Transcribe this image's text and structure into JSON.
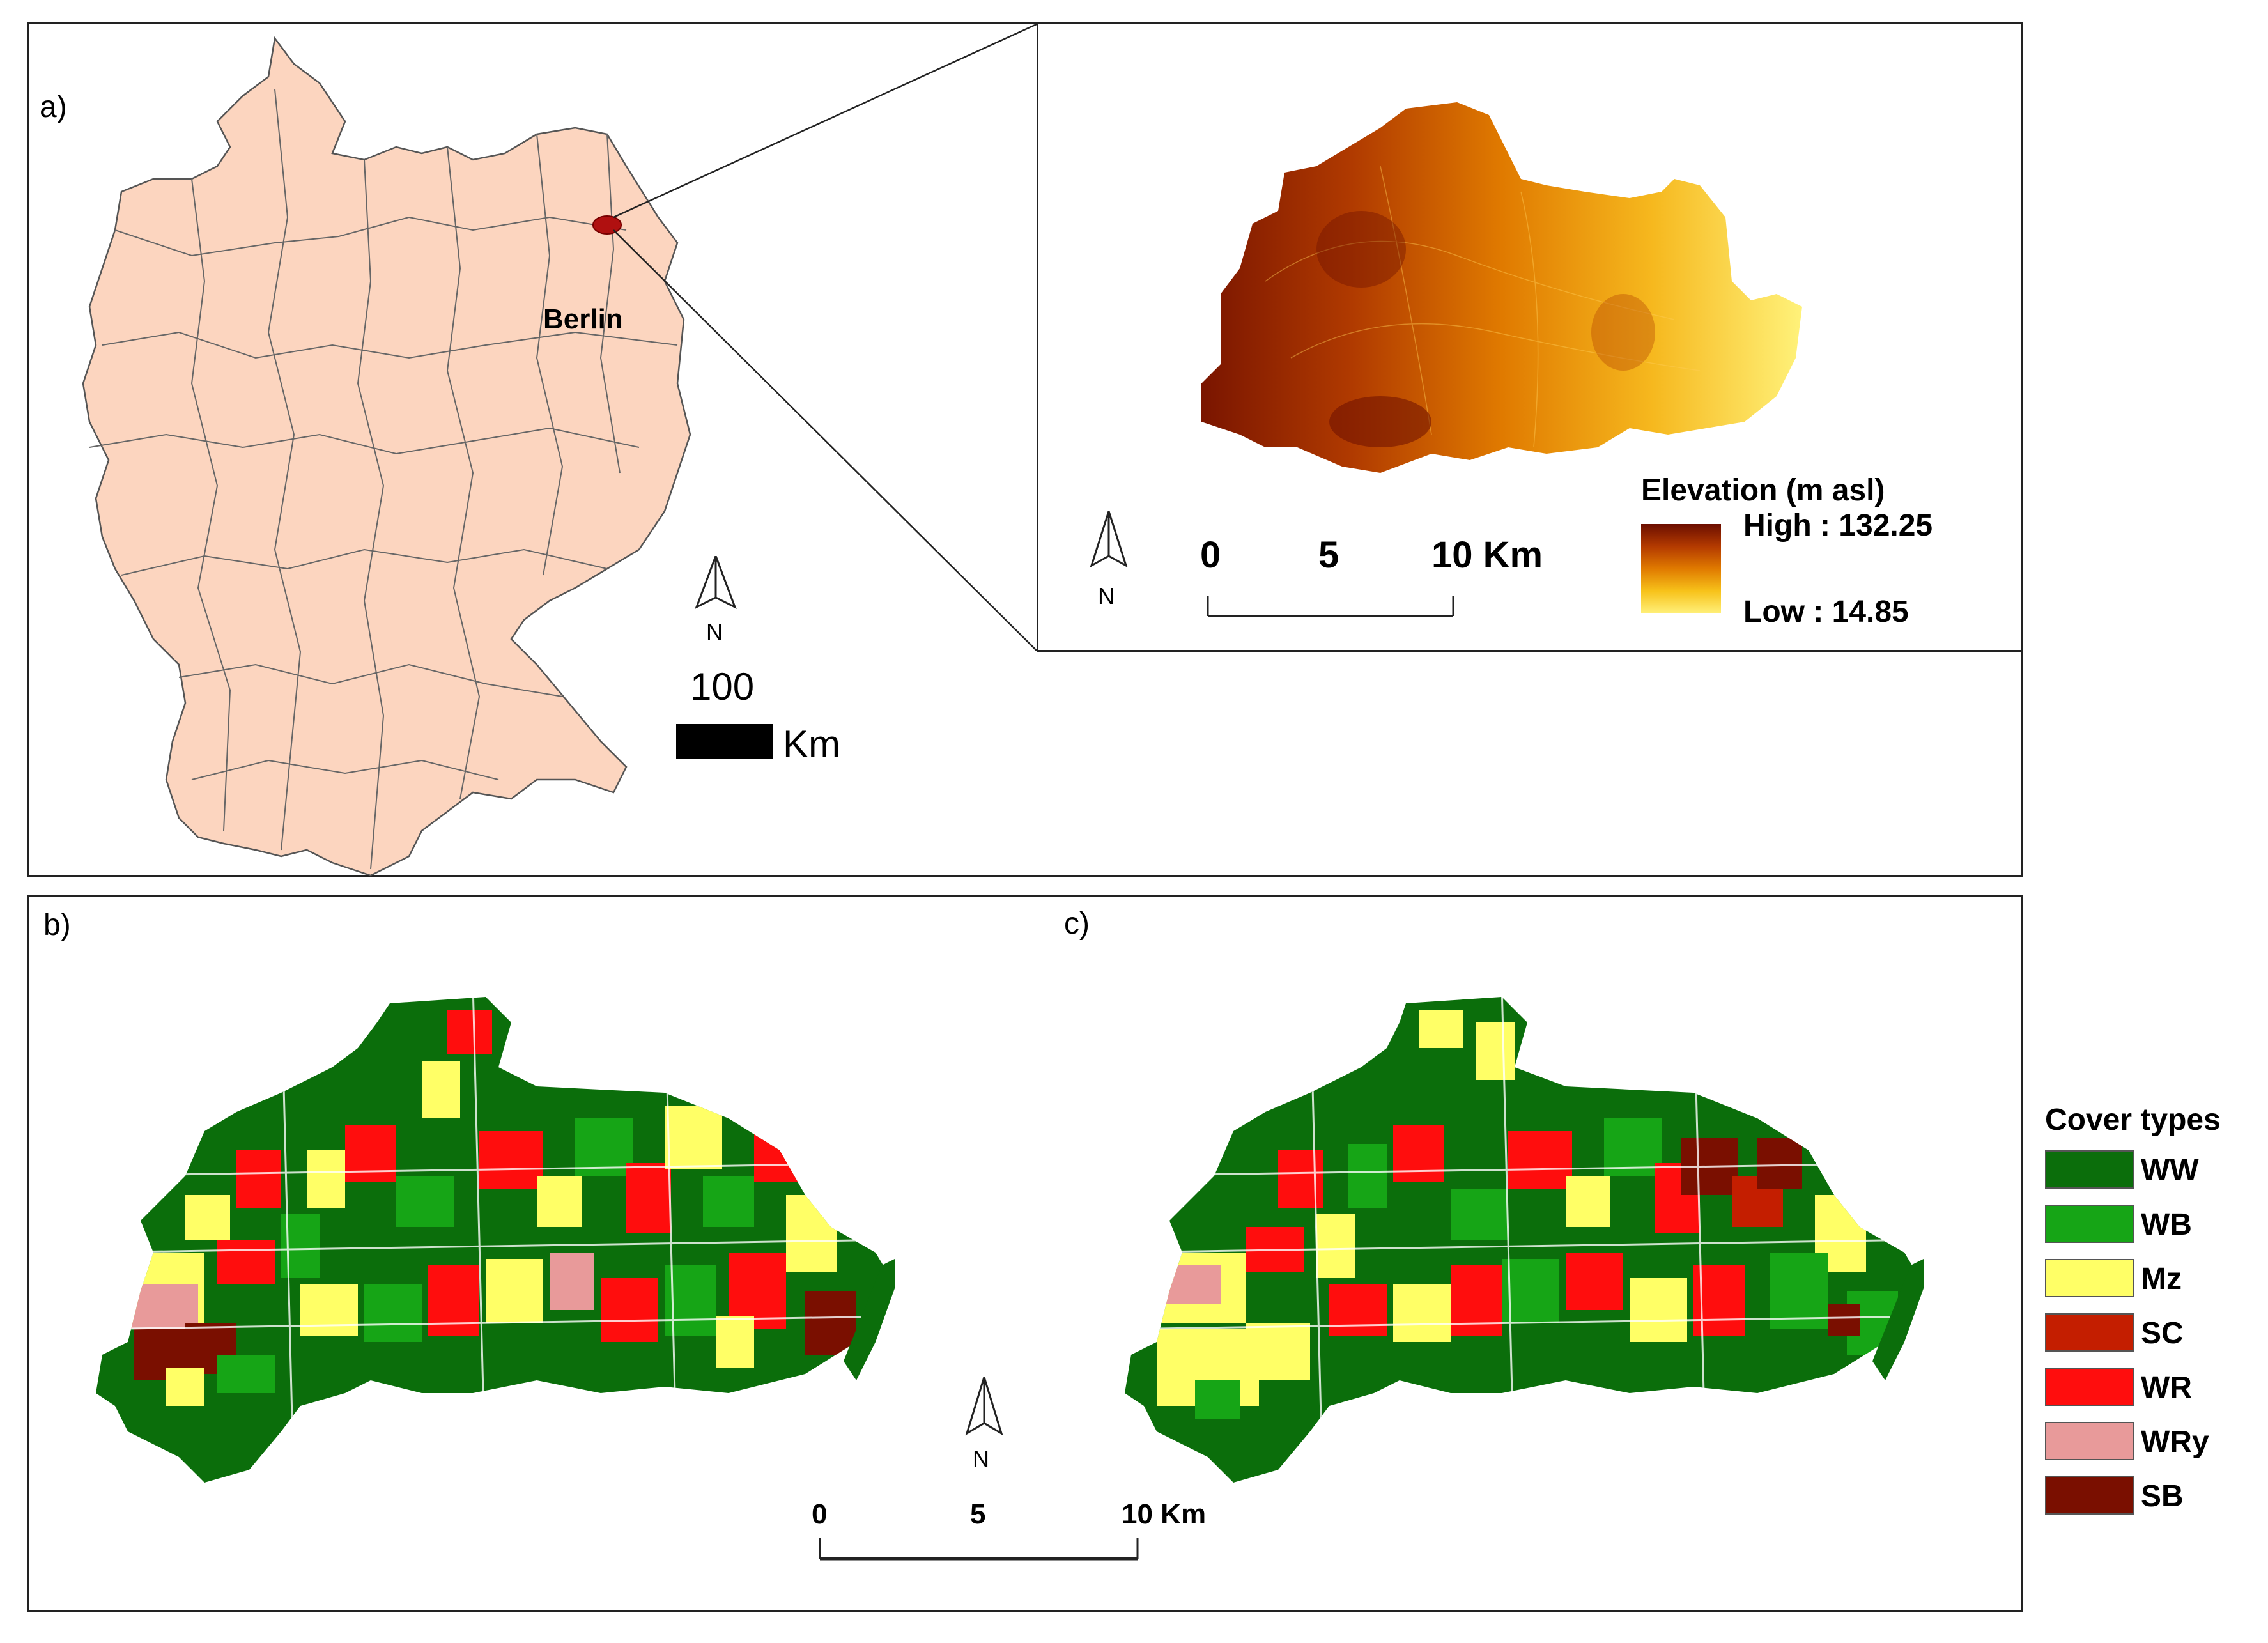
{
  "panel_a": {
    "label": "a)",
    "city_label": "Berlin",
    "north_label": "N",
    "scale_value": "100",
    "scale_unit": "Km"
  },
  "inset": {
    "scale_ticks": [
      "0",
      "5",
      "10 Km"
    ],
    "north_label": "N",
    "legend_title": "Elevation (m asl)",
    "high_label": "High : 132.25",
    "low_label": "Low : 14.85",
    "ramp_colors": [
      "#6b0e00",
      "#b33a00",
      "#e07a00",
      "#f7c21a",
      "#fff07a"
    ]
  },
  "panel_b": {
    "label": "b)"
  },
  "panel_c": {
    "label": "c)"
  },
  "bottom_scale": {
    "ticks": [
      "0",
      "5",
      "10 Km"
    ],
    "north_label": "N"
  },
  "cover_legend": {
    "title": "Cover types",
    "items": [
      {
        "code": "WW",
        "color": "#0b6e0b"
      },
      {
        "code": "WB",
        "color": "#16a516"
      },
      {
        "code": "Mz",
        "color": "#ffff66"
      },
      {
        "code": "SC",
        "color": "#c41e00"
      },
      {
        "code": "WR",
        "color": "#ff0d0d"
      },
      {
        "code": "WRy",
        "color": "#e89a9a"
      },
      {
        "code": "SB",
        "color": "#7a0f00"
      }
    ]
  }
}
